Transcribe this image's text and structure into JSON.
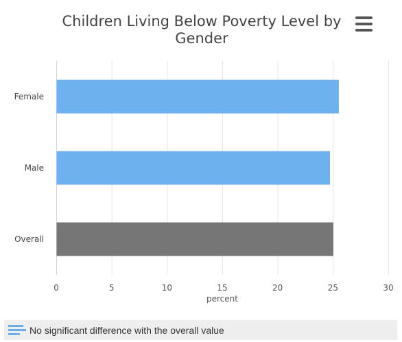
{
  "menu": {
    "icon": "hamburger-menu-icon"
  },
  "legend": {
    "text": "No significant difference with the overall value",
    "icon": "bar-lines-icon",
    "icon_color": "#6aaee9"
  },
  "chart_data": {
    "type": "bar",
    "orientation": "horizontal",
    "title": "Children Living Below Poverty Level by Gender",
    "title_lines": [
      "Children Living Below Poverty Level by",
      "Gender"
    ],
    "categories": [
      "Female",
      "Male",
      "Overall"
    ],
    "values": [
      25.5,
      24.7,
      25.0
    ],
    "bar_colors": [
      "#6db1ef",
      "#6db1ef",
      "#767676"
    ],
    "xlabel": "percent",
    "ylabel": "",
    "xlim": [
      0,
      30
    ],
    "xticks": [
      0,
      5,
      10,
      15,
      20,
      25,
      30
    ],
    "grid": true,
    "gridline_color": "#e6e6e6"
  }
}
